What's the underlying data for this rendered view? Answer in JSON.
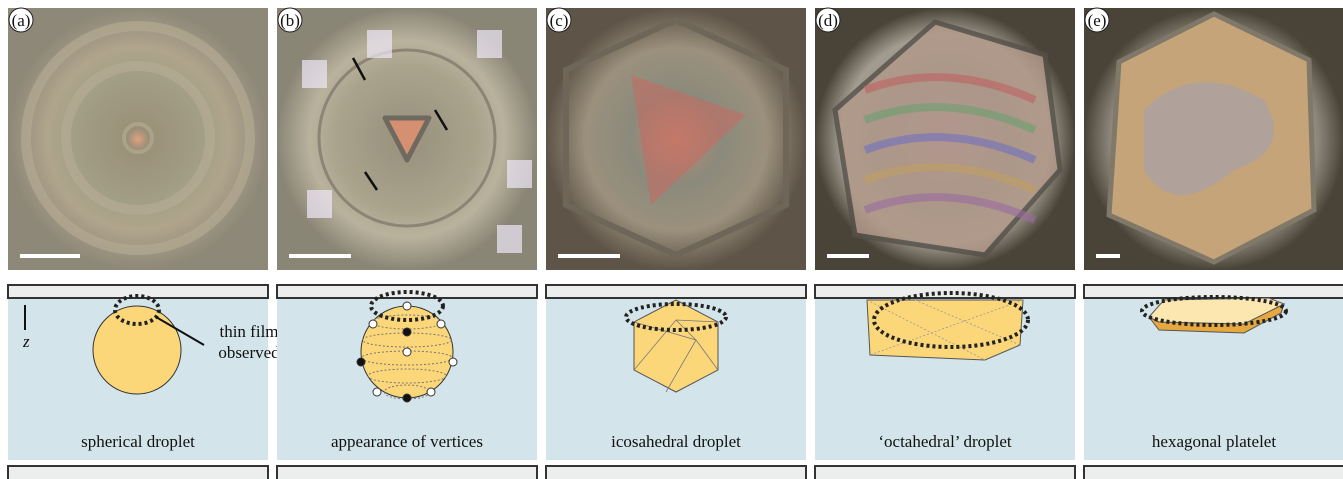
{
  "panels": [
    {
      "label": "(a)",
      "caption": "spherical droplet"
    },
    {
      "label": "(b)",
      "caption": "appearance of vertices"
    },
    {
      "label": "(c)",
      "caption": "icosahedral droplet"
    },
    {
      "label": "(d)",
      "caption": "‘octahedral’ droplet"
    },
    {
      "label": "(e)",
      "caption": "hexagonal platelet"
    }
  ],
  "annotation": {
    "lines": [
      "thin film",
      "observed"
    ],
    "axis": "z"
  }
}
